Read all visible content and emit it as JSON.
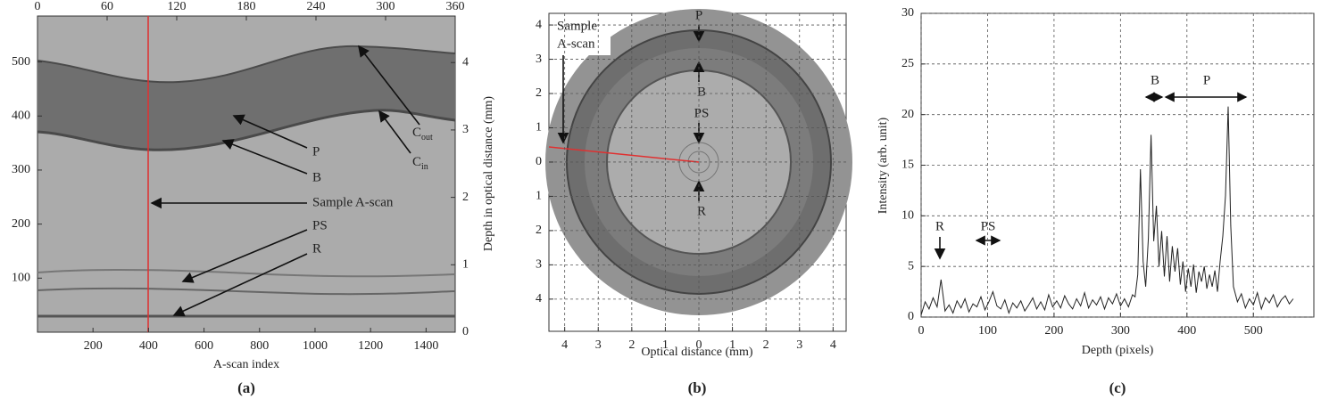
{
  "chart_data": [
    {
      "type": "image",
      "panel_label": "(a)",
      "x_label": "A-scan index",
      "y2_label": "Depth in optical distance (mm)",
      "xlim": [
        0,
        1505
      ],
      "xticks": [
        200,
        400,
        600,
        800,
        1000,
        1200,
        1400
      ],
      "x2lim": [
        0,
        360
      ],
      "x2ticks": [
        0,
        60,
        120,
        180,
        240,
        300,
        360
      ],
      "ylim": [
        0,
        585
      ],
      "yticks": [
        100,
        200,
        300,
        400,
        500
      ],
      "y2lim": [
        0,
        4.69
      ],
      "y2ticks": [
        0,
        1,
        2,
        3,
        4
      ],
      "annotations": [
        {
          "text": "P"
        },
        {
          "text": "B"
        },
        {
          "text": "Sample A-scan"
        },
        {
          "text": "PS"
        },
        {
          "text": "R"
        },
        {
          "text": "C",
          "sub": "out"
        },
        {
          "text": "C",
          "sub": "in"
        }
      ]
    },
    {
      "type": "image",
      "panel_label": "(b)",
      "x_label": "Optical distance (mm)",
      "grid": true,
      "xlim": [
        -4.47,
        4.39
      ],
      "xticks": [
        {
          "value": -4,
          "label": "4"
        },
        {
          "value": -3,
          "label": "3"
        },
        {
          "value": -2,
          "label": "2"
        },
        {
          "value": -1,
          "label": "1"
        },
        0,
        1,
        2,
        3,
        4
      ],
      "ylim": [
        -4.94,
        4.34
      ],
      "yticks": [
        {
          "value": -4,
          "label": "4"
        },
        {
          "value": -3,
          "label": "3"
        },
        {
          "value": -2,
          "label": "2"
        },
        {
          "value": -1,
          "label": "1"
        },
        0,
        1,
        2,
        3,
        4
      ],
      "annotations": [
        {
          "lines": [
            "Sample",
            "A-scan"
          ]
        },
        {
          "text": "P"
        },
        {
          "text": "B"
        },
        {
          "text": "PS"
        },
        {
          "text": "R"
        }
      ]
    },
    {
      "type": "line",
      "panel_label": "(c)",
      "x_label": "Depth (pixels)",
      "y_label": "Intensity (arb. unit)",
      "grid": true,
      "color": "#222222",
      "xlim": [
        0,
        591
      ],
      "xticks": [
        0,
        100,
        200,
        300,
        400,
        500
      ],
      "ylim": [
        0,
        30
      ],
      "yticks": [
        0,
        5,
        10,
        15,
        20,
        25,
        30
      ],
      "x": [
        0,
        6,
        12,
        18,
        24,
        30,
        36,
        42,
        48,
        54,
        60,
        66,
        72,
        78,
        84,
        90,
        96,
        102,
        108,
        114,
        120,
        126,
        132,
        138,
        144,
        150,
        156,
        162,
        168,
        174,
        180,
        186,
        192,
        198,
        204,
        210,
        216,
        222,
        228,
        234,
        240,
        246,
        252,
        258,
        264,
        270,
        276,
        282,
        288,
        294,
        300,
        306,
        312,
        318,
        322,
        326,
        330,
        334,
        338,
        342,
        346,
        350,
        354,
        358,
        362,
        366,
        370,
        374,
        378,
        382,
        386,
        390,
        394,
        398,
        402,
        406,
        410,
        414,
        418,
        422,
        426,
        430,
        434,
        438,
        442,
        446,
        450,
        454,
        458,
        462,
        466,
        470,
        476,
        482,
        488,
        494,
        500,
        506,
        512,
        518,
        524,
        530,
        536,
        542,
        548,
        554,
        560
      ],
      "values": [
        0.2,
        1.5,
        0.8,
        1.9,
        1.0,
        3.7,
        0.6,
        1.2,
        0.4,
        1.6,
        0.9,
        1.8,
        0.5,
        1.3,
        1.0,
        2.0,
        0.7,
        1.5,
        2.5,
        1.1,
        0.8,
        1.7,
        0.4,
        1.4,
        0.9,
        1.6,
        0.6,
        1.2,
        1.9,
        0.8,
        1.5,
        0.7,
        2.2,
        1.0,
        1.6,
        0.9,
        2.1,
        1.3,
        0.8,
        1.8,
        1.1,
        2.4,
        0.9,
        1.7,
        1.2,
        2.0,
        0.8,
        1.9,
        1.3,
        2.3,
        1.1,
        1.8,
        1.0,
        2.2,
        2.0,
        4.2,
        14.6,
        5.5,
        3.0,
        7.8,
        18.0,
        7.5,
        11.0,
        5.0,
        8.5,
        4.0,
        8.0,
        3.5,
        7.0,
        4.5,
        6.8,
        3.2,
        5.5,
        2.5,
        4.8,
        3.0,
        5.2,
        2.4,
        4.5,
        3.5,
        5.0,
        2.8,
        4.2,
        3.0,
        4.6,
        2.5,
        5.5,
        8.0,
        12.0,
        20.8,
        9.0,
        3.0,
        1.5,
        2.3,
        0.9,
        1.8,
        1.2,
        2.4,
        0.8,
        1.9,
        1.4,
        2.2,
        1.0,
        1.7,
        2.1,
        1.3,
        1.8
      ],
      "annotations": [
        {
          "text": "R"
        },
        {
          "text": "PS"
        },
        {
          "text": "B"
        },
        {
          "text": "P"
        }
      ]
    }
  ]
}
